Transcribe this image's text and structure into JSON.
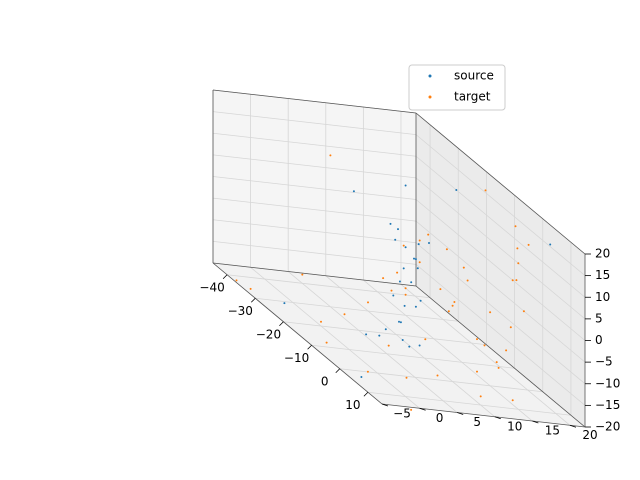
{
  "chart_data": {
    "type": "scatter",
    "projection": "3d",
    "title": "",
    "xlabel": "",
    "ylabel": "",
    "zlabel": "",
    "grid": true,
    "legend": {
      "placement": "upper-right"
    },
    "x_axis": {
      "lim": [
        -45,
        15
      ],
      "ticks": [
        -40,
        -30,
        -20,
        -10,
        0,
        10
      ],
      "tick_labels": [
        "−40",
        "−30",
        "−20",
        "−10",
        "0",
        "10"
      ]
    },
    "y_axis": {
      "lim": [
        -5,
        22
      ],
      "ticks": [
        -5,
        0,
        5,
        10,
        15,
        20
      ],
      "tick_labels": [
        "−5",
        "0",
        "5",
        "10",
        "15",
        "20"
      ]
    },
    "z_axis": {
      "lim": [
        -20,
        20
      ],
      "ticks": [
        -20,
        -15,
        -10,
        -5,
        0,
        5,
        10,
        15,
        20
      ],
      "tick_labels": [
        "−20",
        "−15",
        "−10",
        "−5",
        "0",
        "5",
        "10",
        "15",
        "20"
      ]
    },
    "series": [
      {
        "name": "source",
        "color": "#1f77b4",
        "marker_size": 1,
        "points": [
          [
            -5,
            5,
            -10
          ],
          [
            -5,
            3,
            -12
          ],
          [
            -7,
            6,
            -15
          ],
          [
            -9,
            7,
            -8
          ],
          [
            -3,
            4,
            -9
          ],
          [
            -6,
            8,
            -5
          ],
          [
            -4,
            6,
            0
          ],
          [
            -5,
            7,
            5
          ],
          [
            -7,
            5,
            8
          ],
          [
            -3,
            8,
            10
          ],
          [
            -6,
            4,
            12
          ],
          [
            -4,
            5,
            3
          ],
          [
            -8,
            6,
            -2
          ],
          [
            -5,
            7,
            -6
          ],
          [
            -2,
            5,
            -14
          ],
          [
            -10,
            4,
            -16
          ],
          [
            -12,
            3,
            -17
          ],
          [
            -1,
            6,
            -13
          ],
          [
            -6,
            6,
            7
          ],
          [
            -4,
            7,
            9
          ],
          [
            -7,
            8,
            2
          ],
          [
            -5,
            4,
            -4
          ],
          [
            -3,
            6,
            6
          ],
          [
            -6,
            5,
            11
          ],
          [
            -30,
            15,
            10
          ],
          [
            -25,
            -3,
            -18
          ],
          [
            -35,
            10,
            5
          ],
          [
            -20,
            18,
            15
          ],
          [
            5,
            -4,
            -19
          ],
          [
            8,
            20,
            18
          ]
        ]
      },
      {
        "name": "target",
        "color": "#ff7f0e",
        "marker_size": 1,
        "points": [
          [
            -30,
            10,
            -18
          ],
          [
            -25,
            5,
            -19
          ],
          [
            -35,
            15,
            -17
          ],
          [
            -20,
            0,
            -19
          ],
          [
            -15,
            12,
            -18
          ],
          [
            -10,
            -3,
            -19
          ],
          [
            -5,
            18,
            -18
          ],
          [
            0,
            8,
            -19
          ],
          [
            5,
            2,
            -18
          ],
          [
            8,
            15,
            -19
          ],
          [
            -40,
            5,
            -18
          ],
          [
            -38,
            18,
            -19
          ],
          [
            -28,
            20,
            -17
          ],
          [
            -18,
            20,
            -18
          ],
          [
            -12,
            6,
            -19
          ],
          [
            -2,
            14,
            -18
          ],
          [
            2,
            -2,
            -19
          ],
          [
            10,
            10,
            -18
          ],
          [
            -25,
            15,
            -5
          ],
          [
            -25,
            15,
            0
          ],
          [
            -22,
            15,
            3
          ],
          [
            -18,
            16,
            2
          ],
          [
            -12,
            16,
            1
          ],
          [
            -8,
            15,
            0
          ],
          [
            -25,
            12,
            -8
          ],
          [
            -22,
            12,
            -10
          ],
          [
            -15,
            14,
            -6
          ],
          [
            -30,
            12,
            -12
          ],
          [
            -28,
            14,
            -3
          ],
          [
            -16,
            16,
            -10
          ],
          [
            0,
            18,
            5
          ],
          [
            2,
            18,
            10
          ],
          [
            3,
            19,
            15
          ],
          [
            1,
            18,
            18
          ],
          [
            -1,
            19,
            12
          ],
          [
            4,
            18,
            0
          ],
          [
            2,
            17,
            -5
          ],
          [
            3,
            16,
            -10
          ],
          [
            5,
            14,
            -12
          ],
          [
            6,
            12,
            -8
          ],
          [
            0,
            15,
            -3
          ],
          [
            4,
            17,
            7
          ],
          [
            -45,
            0,
            -25
          ],
          [
            -42,
            -3,
            -22
          ],
          [
            -30,
            5,
            15
          ],
          [
            -15,
            20,
            18
          ],
          [
            12,
            0,
            -22
          ],
          [
            14,
            5,
            5
          ]
        ]
      }
    ]
  }
}
